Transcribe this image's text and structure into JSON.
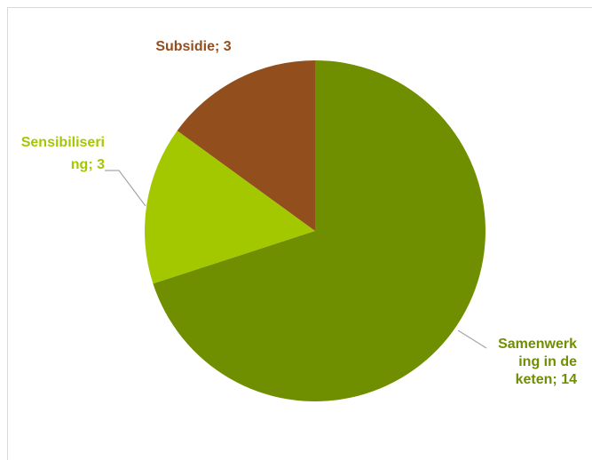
{
  "chart_data": {
    "type": "pie",
    "slices": [
      {
        "label": "Samenwerking in de keten",
        "value": 14,
        "color": "#6f8e00",
        "label_lines": [
          "Samenwerk",
          "ing in de",
          "keten; 14"
        ]
      },
      {
        "label": "Sensibilisering",
        "value": 3,
        "color": "#a4c800",
        "label_lines": [
          "Sensibiliseri",
          "ng; 3"
        ]
      },
      {
        "label": "Subsidie",
        "value": 3,
        "color": "#934e1e",
        "label_lines": [
          "Subsidie; 3"
        ]
      }
    ],
    "start_angle_deg": 0,
    "direction": "clockwise"
  },
  "frame": {
    "top_text": ""
  }
}
